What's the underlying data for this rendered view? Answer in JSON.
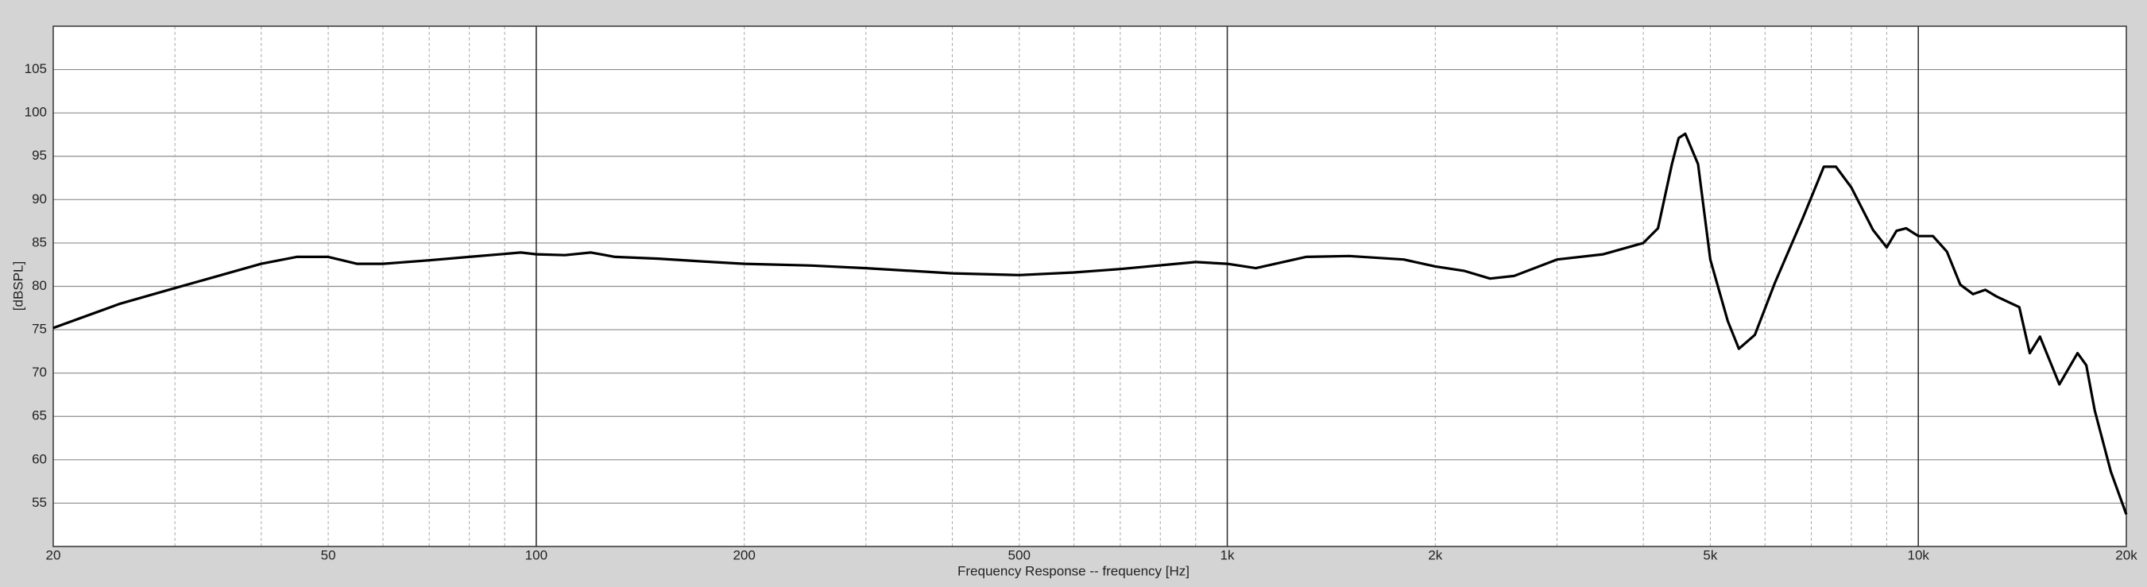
{
  "chart_data": {
    "type": "line",
    "xlabel": "Frequency Response -- frequency [Hz]",
    "ylabel": "[dBSPL]",
    "xscale": "log",
    "xlim": [
      20,
      20000
    ],
    "xticks": [
      20,
      50,
      100,
      200,
      500,
      {
        "value": 1000,
        "label": "1k"
      },
      {
        "value": 2000,
        "label": "2k"
      },
      {
        "value": 5000,
        "label": "5k"
      },
      {
        "value": 10000,
        "label": "10k"
      },
      {
        "value": 20000,
        "label": "20k"
      }
    ],
    "xminor": [
      30,
      40,
      60,
      70,
      80,
      90,
      300,
      400,
      600,
      700,
      800,
      900,
      3000,
      4000,
      6000,
      7000,
      8000,
      9000
    ],
    "ylim": [
      50,
      110
    ],
    "yticks": [
      55,
      60,
      65,
      70,
      75,
      80,
      85,
      90,
      95,
      100,
      105
    ],
    "grid": true,
    "series": [
      {
        "color": "#000000",
        "x": [
          20,
          25,
          30,
          40,
          45,
          50,
          55,
          60,
          70,
          80,
          95,
          100,
          110,
          120,
          130,
          150,
          180,
          200,
          250,
          300,
          400,
          500,
          600,
          700,
          900,
          1000,
          1100,
          1300,
          1500,
          1800,
          2000,
          2200,
          2400,
          2600,
          3000,
          3500,
          4000,
          4200,
          4400,
          4500,
          4600,
          4800,
          5000,
          5300,
          5500,
          5800,
          6200,
          6800,
          7300,
          7600,
          8000,
          8600,
          9000,
          9300,
          9600,
          10000,
          10500,
          11000,
          11500,
          12000,
          12500,
          13000,
          14000,
          14500,
          15000,
          16000,
          17000,
          17500,
          18000,
          19000,
          20000
        ],
        "values": [
          75.2,
          78.0,
          79.8,
          82.6,
          83.4,
          83.4,
          82.6,
          82.6,
          83.0,
          83.4,
          83.9,
          83.7,
          83.6,
          83.9,
          83.4,
          83.2,
          82.8,
          82.6,
          82.4,
          82.1,
          81.5,
          81.3,
          81.6,
          82.0,
          82.8,
          82.6,
          82.1,
          83.4,
          83.5,
          83.1,
          82.3,
          81.8,
          80.9,
          81.2,
          83.1,
          83.7,
          85.0,
          86.7,
          94.1,
          97.1,
          97.6,
          94.1,
          83.1,
          76.0,
          72.8,
          74.4,
          80.4,
          87.8,
          93.8,
          93.8,
          91.4,
          86.5,
          84.5,
          86.4,
          86.7,
          85.8,
          85.8,
          84.0,
          80.2,
          79.1,
          79.6,
          78.8,
          77.6,
          72.3,
          74.2,
          68.7,
          72.3,
          70.9,
          65.7,
          58.6,
          53.7
        ]
      }
    ]
  }
}
